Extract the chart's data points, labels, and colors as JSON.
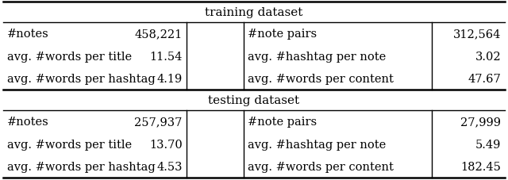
{
  "training_header": "training dataset",
  "testing_header": "testing dataset",
  "training_rows": [
    [
      "#notes",
      "458,221",
      "#note pairs",
      "312,564"
    ],
    [
      "avg. #words per title",
      "11.54",
      "avg. #hashtag per note",
      "3.02"
    ],
    [
      "avg. #words per hashtag",
      "4.19",
      "avg. #words per content",
      "47.67"
    ]
  ],
  "testing_rows": [
    [
      "#notes",
      "257,937",
      "#note pairs",
      "27,999"
    ],
    [
      "avg. #words per title",
      "13.70",
      "avg. #hashtag per note",
      "5.49"
    ],
    [
      "avg. #words per hashtag",
      "4.53",
      "avg. #words per content",
      "182.45"
    ]
  ],
  "col_proportions": [
    0.365,
    0.115,
    0.375,
    0.145
  ],
  "font_size": 10.5,
  "header_font_size": 11.0,
  "bg_color": "#ffffff",
  "line_color": "#000000",
  "lw_thick": 1.8,
  "lw_thin": 1.0
}
